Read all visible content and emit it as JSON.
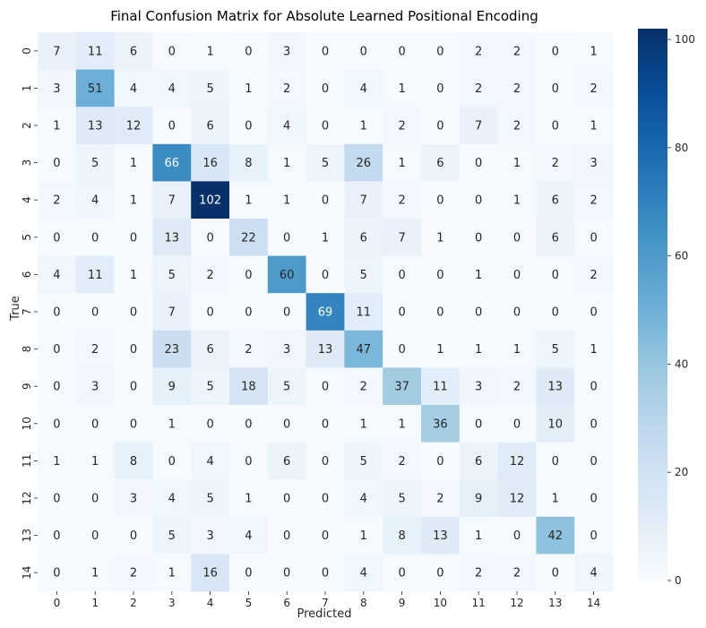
{
  "chart_data": {
    "type": "heatmap",
    "title": "Final Confusion Matrix for Absolute Learned Positional Encoding",
    "xlabel": "Predicted",
    "ylabel": "True",
    "x_categories": [
      "0",
      "1",
      "2",
      "3",
      "4",
      "5",
      "6",
      "7",
      "8",
      "9",
      "10",
      "11",
      "12",
      "13",
      "14"
    ],
    "y_categories": [
      "0",
      "1",
      "2",
      "3",
      "4",
      "5",
      "6",
      "7",
      "8",
      "9",
      "10",
      "11",
      "12",
      "13",
      "14"
    ],
    "values": [
      [
        7,
        11,
        6,
        0,
        1,
        0,
        3,
        0,
        0,
        0,
        0,
        2,
        2,
        0,
        1
      ],
      [
        3,
        51,
        4,
        4,
        5,
        1,
        2,
        0,
        4,
        1,
        0,
        2,
        2,
        0,
        2
      ],
      [
        1,
        13,
        12,
        0,
        6,
        0,
        4,
        0,
        1,
        2,
        0,
        7,
        2,
        0,
        1
      ],
      [
        0,
        5,
        1,
        66,
        16,
        8,
        1,
        5,
        26,
        1,
        6,
        0,
        1,
        2,
        3
      ],
      [
        2,
        4,
        1,
        7,
        102,
        1,
        1,
        0,
        7,
        2,
        0,
        0,
        1,
        6,
        2
      ],
      [
        0,
        0,
        0,
        13,
        0,
        22,
        0,
        1,
        6,
        7,
        1,
        0,
        0,
        6,
        0
      ],
      [
        4,
        11,
        1,
        5,
        2,
        0,
        60,
        0,
        5,
        0,
        0,
        1,
        0,
        0,
        2
      ],
      [
        0,
        0,
        0,
        7,
        0,
        0,
        0,
        69,
        11,
        0,
        0,
        0,
        0,
        0,
        0
      ],
      [
        0,
        2,
        0,
        23,
        6,
        2,
        3,
        13,
        47,
        0,
        1,
        1,
        1,
        5,
        1
      ],
      [
        0,
        3,
        0,
        9,
        5,
        18,
        5,
        0,
        2,
        37,
        11,
        3,
        2,
        13,
        0
      ],
      [
        0,
        0,
        0,
        1,
        0,
        0,
        0,
        0,
        1,
        1,
        36,
        0,
        0,
        10,
        0
      ],
      [
        1,
        1,
        8,
        0,
        4,
        0,
        6,
        0,
        5,
        2,
        0,
        6,
        12,
        0,
        0
      ],
      [
        0,
        0,
        3,
        4,
        5,
        1,
        0,
        0,
        4,
        5,
        2,
        9,
        12,
        1,
        0
      ],
      [
        0,
        0,
        0,
        5,
        3,
        4,
        0,
        0,
        1,
        8,
        13,
        1,
        0,
        42,
        0
      ],
      [
        0,
        1,
        2,
        1,
        16,
        0,
        0,
        0,
        4,
        0,
        0,
        2,
        2,
        0,
        4
      ]
    ],
    "colormap": "Blues",
    "color_low": "#f7fbff",
    "color_high": "#08306b",
    "colorbar": {
      "min": 0,
      "max": 102,
      "ticks": [
        0,
        20,
        40,
        60,
        80,
        100
      ],
      "tick_labels": [
        "0",
        "20",
        "40",
        "60",
        "80",
        "100"
      ]
    }
  }
}
